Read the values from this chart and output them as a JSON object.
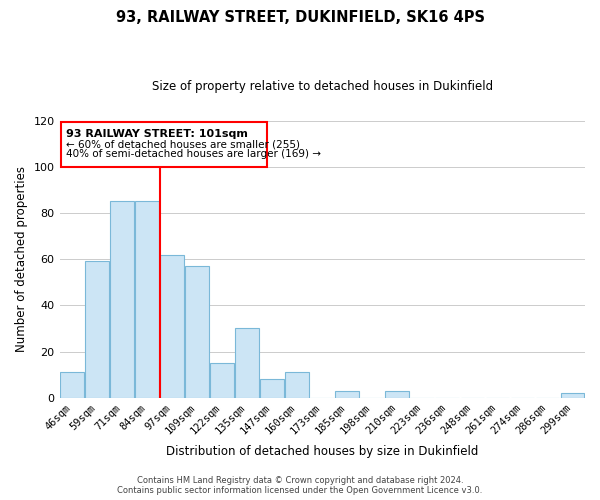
{
  "title": "93, RAILWAY STREET, DUKINFIELD, SK16 4PS",
  "subtitle": "Size of property relative to detached houses in Dukinfield",
  "xlabel": "Distribution of detached houses by size in Dukinfield",
  "ylabel": "Number of detached properties",
  "categories": [
    "46sqm",
    "59sqm",
    "71sqm",
    "84sqm",
    "97sqm",
    "109sqm",
    "122sqm",
    "135sqm",
    "147sqm",
    "160sqm",
    "173sqm",
    "185sqm",
    "198sqm",
    "210sqm",
    "223sqm",
    "236sqm",
    "248sqm",
    "261sqm",
    "274sqm",
    "286sqm",
    "299sqm"
  ],
  "values": [
    11,
    59,
    85,
    85,
    62,
    57,
    15,
    30,
    8,
    11,
    0,
    3,
    0,
    3,
    0,
    0,
    0,
    0,
    0,
    0,
    2
  ],
  "bar_face_color": "#cce5f5",
  "bar_edge_color": "#7ab8d8",
  "red_line_x": 3.5,
  "annotation_title": "93 RAILWAY STREET: 101sqm",
  "annotation_line1": "← 60% of detached houses are smaller (255)",
  "annotation_line2": "40% of semi-detached houses are larger (169) →",
  "ylim": [
    0,
    120
  ],
  "yticks": [
    0,
    20,
    40,
    60,
    80,
    100,
    120
  ],
  "footer_line1": "Contains HM Land Registry data © Crown copyright and database right 2024.",
  "footer_line2": "Contains public sector information licensed under the Open Government Licence v3.0.",
  "background_color": "#ffffff",
  "grid_color": "#cccccc"
}
